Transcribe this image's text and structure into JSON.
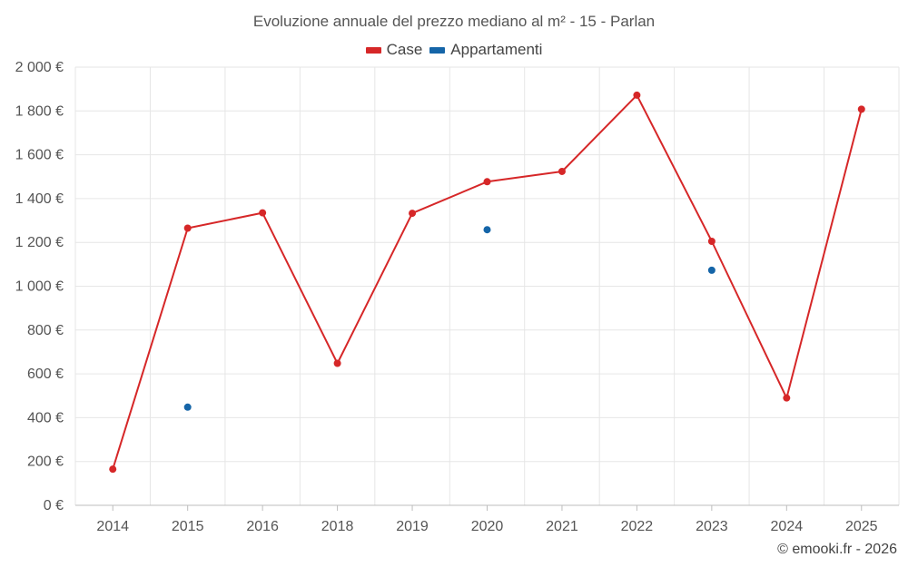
{
  "chart_data": {
    "type": "line",
    "title": "Evoluzione annuale del prezzo mediano al m² - 15 - Parlan",
    "categories": [
      "2014",
      "2015",
      "2016",
      "2018",
      "2019",
      "2020",
      "2021",
      "2022",
      "2023",
      "2024",
      "2025"
    ],
    "series": [
      {
        "name": "Case",
        "color": "#d62728",
        "style": "line-with-markers",
        "values": [
          165,
          1265,
          1335,
          648,
          1333,
          1477,
          1524,
          1872,
          1205,
          490,
          1808
        ]
      },
      {
        "name": "Appartamenti",
        "color": "#1565a8",
        "style": "markers-only",
        "values": [
          null,
          448,
          null,
          null,
          null,
          1258,
          null,
          null,
          1073,
          null,
          null
        ]
      }
    ],
    "ylim": [
      0,
      2000
    ],
    "yticks": [
      0,
      200,
      400,
      600,
      800,
      1000,
      1200,
      1400,
      1600,
      1800,
      2000
    ],
    "ytick_labels": [
      "0 €",
      "200 €",
      "400 €",
      "600 €",
      "800 €",
      "1 000 €",
      "1 200 €",
      "1 400 €",
      "1 600 €",
      "1 800 €",
      "2 000 €"
    ],
    "xlabel": "",
    "ylabel": "",
    "grid": true,
    "legend_position": "top-center"
  },
  "credit": "© emooki.fr - 2026"
}
